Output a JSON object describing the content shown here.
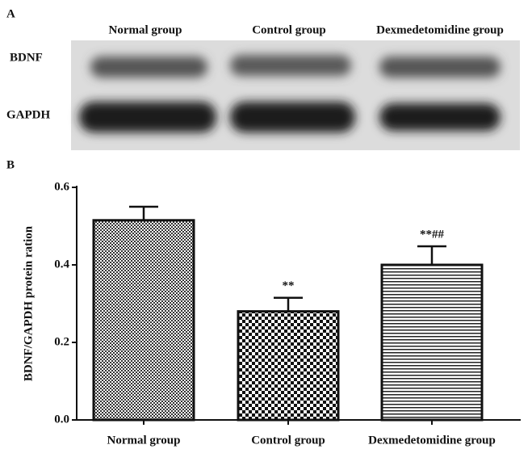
{
  "panel_a": {
    "label": "A",
    "columns": [
      "Normal group",
      "Control group",
      "Dexmedetomidine group"
    ],
    "rows": [
      "BDNF",
      "GAPDH"
    ]
  },
  "chart_data": {
    "type": "bar",
    "panel_label": "B",
    "y_label": "BDNF/GAPDH protein ration",
    "categories": [
      "Normal group",
      "Control group",
      "Dexmedetomidine group"
    ],
    "values": [
      0.515,
      0.28,
      0.4
    ],
    "errors": [
      0.035,
      0.035,
      0.048
    ],
    "bar_annotations": [
      null,
      "**",
      "**##"
    ],
    "ylim": [
      0,
      0.6
    ],
    "yticks": [
      {
        "value": 0,
        "label": "0.0"
      },
      0.2,
      0.4,
      0.6
    ],
    "grid": false
  }
}
